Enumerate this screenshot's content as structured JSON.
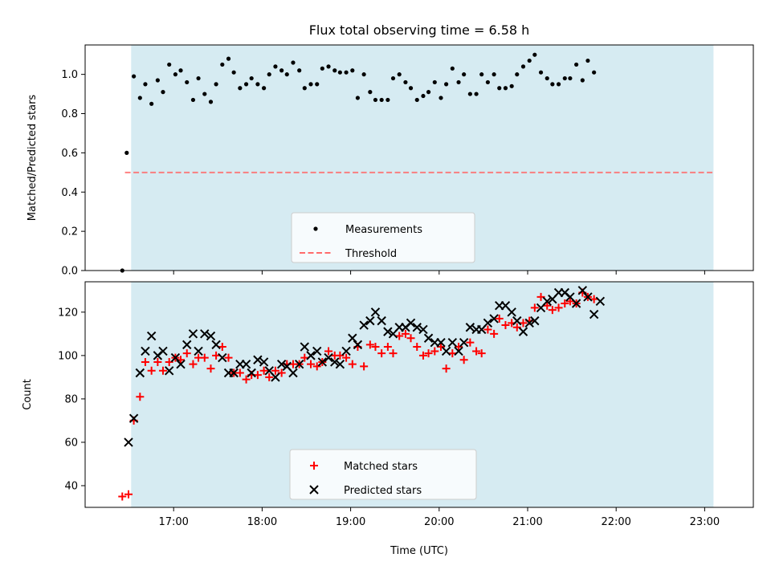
{
  "figure": {
    "title": "Flux total observing time = 6.58 h",
    "xlabel": "Time (UTC)",
    "x_tick_labels": [
      "17:00",
      "18:00",
      "19:00",
      "20:00",
      "21:00",
      "22:00",
      "23:00"
    ]
  },
  "chart_data": [
    {
      "type": "scatter",
      "panel": "top",
      "ylabel": "Matched/Predicted stars",
      "ylim": [
        0,
        1.15
      ],
      "y_ticks": [
        0.0,
        0.2,
        0.4,
        0.6,
        0.8,
        1.0
      ],
      "xlim_hours": [
        16.0,
        23.55
      ],
      "observing_window_hours": [
        16.52,
        23.1
      ],
      "threshold": 0.5,
      "legend": {
        "placement": "lower center",
        "entries": [
          "Measurements",
          "Threshold"
        ]
      },
      "series": [
        {
          "name": "Measurements",
          "marker": "dot",
          "color": "#000000",
          "points": [
            [
              16.42,
              0.0
            ],
            [
              16.47,
              0.6
            ],
            [
              16.55,
              0.99
            ],
            [
              16.62,
              0.88
            ],
            [
              16.68,
              0.95
            ],
            [
              16.75,
              0.85
            ],
            [
              16.82,
              0.97
            ],
            [
              16.88,
              0.91
            ],
            [
              16.95,
              1.05
            ],
            [
              17.02,
              1.0
            ],
            [
              17.08,
              1.02
            ],
            [
              17.15,
              0.96
            ],
            [
              17.22,
              0.87
            ],
            [
              17.28,
              0.98
            ],
            [
              17.35,
              0.9
            ],
            [
              17.42,
              0.86
            ],
            [
              17.48,
              0.95
            ],
            [
              17.55,
              1.05
            ],
            [
              17.62,
              1.08
            ],
            [
              17.68,
              1.01
            ],
            [
              17.75,
              0.93
            ],
            [
              17.82,
              0.95
            ],
            [
              17.88,
              0.98
            ],
            [
              17.95,
              0.95
            ],
            [
              18.02,
              0.93
            ],
            [
              18.08,
              1.0
            ],
            [
              18.15,
              1.04
            ],
            [
              18.22,
              1.02
            ],
            [
              18.28,
              1.0
            ],
            [
              18.35,
              1.06
            ],
            [
              18.42,
              1.02
            ],
            [
              18.48,
              0.93
            ],
            [
              18.55,
              0.95
            ],
            [
              18.62,
              0.95
            ],
            [
              18.68,
              1.03
            ],
            [
              18.75,
              1.04
            ],
            [
              18.82,
              1.02
            ],
            [
              18.88,
              1.01
            ],
            [
              18.95,
              1.01
            ],
            [
              19.02,
              1.02
            ],
            [
              19.08,
              0.88
            ],
            [
              19.15,
              1.0
            ],
            [
              19.22,
              0.91
            ],
            [
              19.28,
              0.87
            ],
            [
              19.35,
              0.87
            ],
            [
              19.42,
              0.87
            ],
            [
              19.48,
              0.98
            ],
            [
              19.55,
              1.0
            ],
            [
              19.62,
              0.96
            ],
            [
              19.68,
              0.93
            ],
            [
              19.75,
              0.87
            ],
            [
              19.82,
              0.89
            ],
            [
              19.88,
              0.91
            ],
            [
              19.95,
              0.96
            ],
            [
              20.02,
              0.88
            ],
            [
              20.08,
              0.95
            ],
            [
              20.15,
              1.03
            ],
            [
              20.22,
              0.96
            ],
            [
              20.28,
              1.0
            ],
            [
              20.35,
              0.9
            ],
            [
              20.42,
              0.9
            ],
            [
              20.48,
              1.0
            ],
            [
              20.55,
              0.96
            ],
            [
              20.62,
              1.0
            ],
            [
              20.68,
              0.93
            ],
            [
              20.75,
              0.93
            ],
            [
              20.82,
              0.94
            ],
            [
              20.88,
              1.0
            ],
            [
              20.95,
              1.04
            ],
            [
              21.02,
              1.07
            ],
            [
              21.08,
              1.1
            ],
            [
              21.15,
              1.01
            ],
            [
              21.22,
              0.98
            ],
            [
              21.28,
              0.95
            ],
            [
              21.35,
              0.95
            ],
            [
              21.42,
              0.98
            ],
            [
              21.48,
              0.98
            ],
            [
              21.55,
              1.05
            ],
            [
              21.62,
              0.97
            ],
            [
              21.68,
              1.07
            ],
            [
              21.75,
              1.01
            ]
          ]
        }
      ]
    },
    {
      "type": "scatter",
      "panel": "bottom",
      "ylabel": "Count",
      "ylim": [
        30,
        134
      ],
      "y_ticks": [
        40,
        60,
        80,
        100,
        120
      ],
      "xlim_hours": [
        16.0,
        23.55
      ],
      "observing_window_hours": [
        16.52,
        23.1
      ],
      "legend": {
        "placement": "lower center",
        "entries": [
          "Matched stars",
          "Predicted stars"
        ]
      },
      "series": [
        {
          "name": "Matched stars",
          "marker": "plus",
          "color": "#ff0000",
          "points": [
            [
              16.42,
              35
            ],
            [
              16.49,
              36
            ],
            [
              16.55,
              70
            ],
            [
              16.62,
              81
            ],
            [
              16.68,
              97
            ],
            [
              16.75,
              93
            ],
            [
              16.82,
              97
            ],
            [
              16.88,
              93
            ],
            [
              16.95,
              97
            ],
            [
              17.02,
              99
            ],
            [
              17.08,
              98
            ],
            [
              17.15,
              101
            ],
            [
              17.22,
              96
            ],
            [
              17.28,
              99
            ],
            [
              17.35,
              99
            ],
            [
              17.42,
              94
            ],
            [
              17.48,
              100
            ],
            [
              17.55,
              104
            ],
            [
              17.62,
              99
            ],
            [
              17.68,
              92
            ],
            [
              17.75,
              92
            ],
            [
              17.82,
              89
            ],
            [
              17.88,
              91
            ],
            [
              17.95,
              91
            ],
            [
              18.02,
              93
            ],
            [
              18.08,
              90
            ],
            [
              18.15,
              93
            ],
            [
              18.22,
              92
            ],
            [
              18.28,
              96
            ],
            [
              18.35,
              96
            ],
            [
              18.42,
              96
            ],
            [
              18.48,
              99
            ],
            [
              18.55,
              96
            ],
            [
              18.62,
              95
            ],
            [
              18.68,
              97
            ],
            [
              18.75,
              102
            ],
            [
              18.82,
              100
            ],
            [
              18.88,
              100
            ],
            [
              18.95,
              99
            ],
            [
              19.02,
              96
            ],
            [
              19.08,
              104
            ],
            [
              19.15,
              95
            ],
            [
              19.22,
              105
            ],
            [
              19.28,
              104
            ],
            [
              19.35,
              101
            ],
            [
              19.42,
              104
            ],
            [
              19.48,
              101
            ],
            [
              19.55,
              109
            ],
            [
              19.62,
              110
            ],
            [
              19.68,
              108
            ],
            [
              19.75,
              104
            ],
            [
              19.82,
              100
            ],
            [
              19.88,
              101
            ],
            [
              19.95,
              102
            ],
            [
              20.02,
              104
            ],
            [
              20.08,
              94
            ],
            [
              20.15,
              101
            ],
            [
              20.22,
              104
            ],
            [
              20.28,
              98
            ],
            [
              20.35,
              106
            ],
            [
              20.42,
              102
            ],
            [
              20.48,
              101
            ],
            [
              20.55,
              112
            ],
            [
              20.62,
              110
            ],
            [
              20.68,
              117
            ],
            [
              20.75,
              114
            ],
            [
              20.82,
              115
            ],
            [
              20.88,
              113
            ],
            [
              20.95,
              115
            ],
            [
              21.02,
              116
            ],
            [
              21.08,
              122
            ],
            [
              21.15,
              127
            ],
            [
              21.22,
              123
            ],
            [
              21.28,
              121
            ],
            [
              21.35,
              122
            ],
            [
              21.42,
              124
            ],
            [
              21.48,
              125
            ],
            [
              21.55,
              124
            ],
            [
              21.62,
              129
            ],
            [
              21.68,
              127
            ],
            [
              21.75,
              126
            ]
          ]
        },
        {
          "name": "Predicted stars",
          "marker": "x",
          "color": "#000000",
          "points": [
            [
              16.49,
              60
            ],
            [
              16.55,
              71
            ],
            [
              16.62,
              92
            ],
            [
              16.68,
              102
            ],
            [
              16.75,
              109
            ],
            [
              16.82,
              100
            ],
            [
              16.88,
              102
            ],
            [
              16.95,
              93
            ],
            [
              17.02,
              99
            ],
            [
              17.08,
              96
            ],
            [
              17.15,
              105
            ],
            [
              17.22,
              110
            ],
            [
              17.28,
              102
            ],
            [
              17.35,
              110
            ],
            [
              17.42,
              109
            ],
            [
              17.48,
              105
            ],
            [
              17.55,
              99
            ],
            [
              17.62,
              92
            ],
            [
              17.68,
              92
            ],
            [
              17.75,
              96
            ],
            [
              17.82,
              96
            ],
            [
              17.88,
              92
            ],
            [
              17.95,
              98
            ],
            [
              18.02,
              97
            ],
            [
              18.08,
              93
            ],
            [
              18.15,
              90
            ],
            [
              18.22,
              96
            ],
            [
              18.28,
              95
            ],
            [
              18.35,
              92
            ],
            [
              18.42,
              96
            ],
            [
              18.48,
              104
            ],
            [
              18.55,
              100
            ],
            [
              18.62,
              102
            ],
            [
              18.68,
              97
            ],
            [
              18.75,
              99
            ],
            [
              18.82,
              97
            ],
            [
              18.88,
              96
            ],
            [
              18.95,
              102
            ],
            [
              19.02,
              108
            ],
            [
              19.08,
              105
            ],
            [
              19.15,
              114
            ],
            [
              19.22,
              116
            ],
            [
              19.28,
              120
            ],
            [
              19.35,
              116
            ],
            [
              19.42,
              111
            ],
            [
              19.48,
              110
            ],
            [
              19.55,
              113
            ],
            [
              19.62,
              113
            ],
            [
              19.68,
              115
            ],
            [
              19.75,
              113
            ],
            [
              19.82,
              112
            ],
            [
              19.88,
              108
            ],
            [
              19.95,
              106
            ],
            [
              20.02,
              106
            ],
            [
              20.08,
              102
            ],
            [
              20.15,
              106
            ],
            [
              20.22,
              102
            ],
            [
              20.28,
              106
            ],
            [
              20.35,
              113
            ],
            [
              20.42,
              112
            ],
            [
              20.48,
              112
            ],
            [
              20.55,
              115
            ],
            [
              20.62,
              117
            ],
            [
              20.68,
              123
            ],
            [
              20.75,
              123
            ],
            [
              20.82,
              120
            ],
            [
              20.88,
              116
            ],
            [
              20.95,
              111
            ],
            [
              21.02,
              115
            ],
            [
              21.08,
              116
            ],
            [
              21.15,
              122
            ],
            [
              21.22,
              125
            ],
            [
              21.28,
              126
            ],
            [
              21.35,
              129
            ],
            [
              21.42,
              129
            ],
            [
              21.48,
              127
            ],
            [
              21.55,
              124
            ],
            [
              21.62,
              130
            ],
            [
              21.68,
              127
            ],
            [
              21.75,
              119
            ],
            [
              21.82,
              125
            ]
          ]
        }
      ]
    }
  ]
}
